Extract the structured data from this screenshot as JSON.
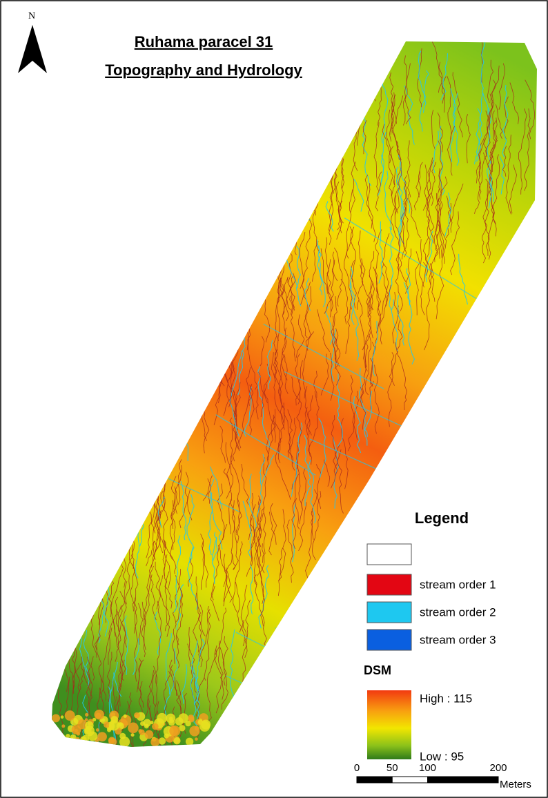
{
  "north_label": "N",
  "title": [
    "Ruhama paracel 31",
    "Topography and Hydrology"
  ],
  "legend": {
    "title": "Legend",
    "items": [
      {
        "label": "stream order 1",
        "color": "#e30613"
      },
      {
        "label": "stream order 2",
        "color": "#1ec8f0"
      },
      {
        "label": "stream order 3",
        "color": "#0a5fe0"
      }
    ]
  },
  "dsm": {
    "title": "DSM",
    "high": "High : 115",
    "low": "Low : 95"
  },
  "scale_bar": {
    "ticks": [
      0,
      50,
      100,
      200
    ],
    "unit": "Meters"
  }
}
